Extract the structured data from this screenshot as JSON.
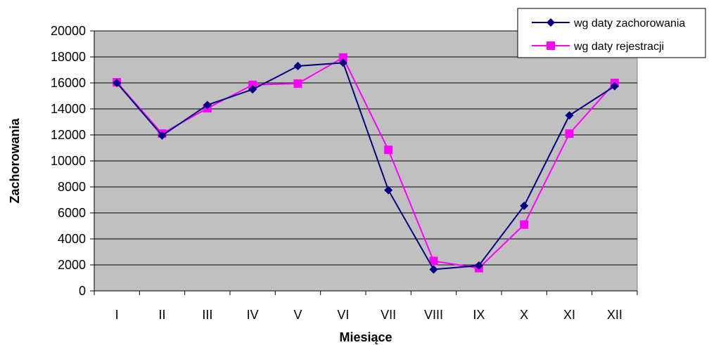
{
  "chart_data": {
    "type": "line",
    "title": "",
    "xlabel": "Miesiące",
    "ylabel": "Zachorowania",
    "categories": [
      "I",
      "II",
      "III",
      "IV",
      "V",
      "VI",
      "VII",
      "VIII",
      "IX",
      "X",
      "XI",
      "XII"
    ],
    "ylim": [
      0,
      20000
    ],
    "yticks": [
      0,
      2000,
      4000,
      6000,
      8000,
      10000,
      12000,
      14000,
      16000,
      18000,
      20000
    ],
    "grid": true,
    "plot_background": "#c0c0c0",
    "legend_position": "top-right",
    "series": [
      {
        "name": "wg daty zachorowania",
        "color": "#000080",
        "marker": "diamond",
        "values": [
          16000,
          11950,
          14300,
          15500,
          17300,
          17550,
          7750,
          1650,
          1950,
          6550,
          13500,
          15750
        ]
      },
      {
        "name": "wg daty rejestracji",
        "color": "#ff00ff",
        "marker": "square",
        "values": [
          16050,
          12100,
          14050,
          15850,
          15950,
          17950,
          10850,
          2300,
          1750,
          5100,
          12100,
          16000
        ]
      }
    ]
  }
}
